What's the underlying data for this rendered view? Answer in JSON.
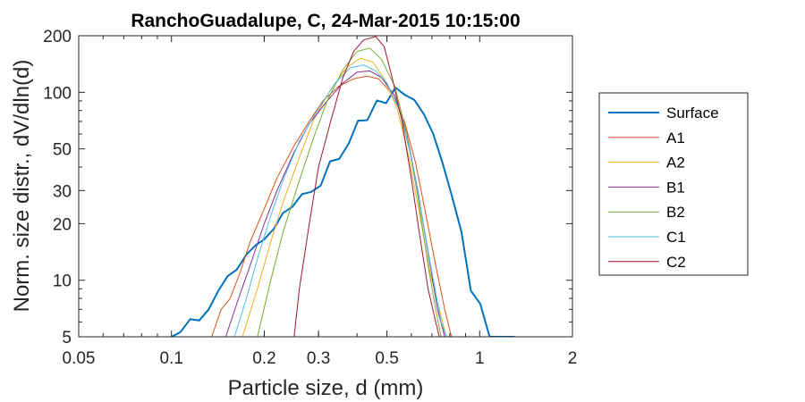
{
  "chart_data": {
    "type": "line",
    "title": "RanchoGuadalupe, C, 24-Mar-2015 10:15:00",
    "xlabel": "Particle size, d (mm)",
    "ylabel": "Norm. size distr., dV/dln(d)",
    "xscale": "log",
    "yscale": "log",
    "xlim": [
      0.05,
      2
    ],
    "ylim": [
      5,
      200
    ],
    "xticks": [
      0.05,
      0.1,
      0.2,
      0.3,
      0.5,
      1,
      2
    ],
    "xtick_labels": [
      "0.05",
      "0.1",
      "0.2",
      "0.3",
      "0.5",
      "1",
      "2"
    ],
    "yticks": [
      5,
      10,
      20,
      30,
      50,
      100,
      200
    ],
    "ytick_labels": [
      "5",
      "10",
      "20",
      "30",
      "50",
      "100",
      "200"
    ],
    "grid": false,
    "legend_position": "outside-right",
    "series": [
      {
        "name": "Surface",
        "color": "#0072BD",
        "width": 2,
        "x": [
          0.1,
          0.107,
          0.115,
          0.123,
          0.132,
          0.142,
          0.152,
          0.163,
          0.175,
          0.188,
          0.2,
          0.215,
          0.23,
          0.247,
          0.265,
          0.284,
          0.305,
          0.327,
          0.35,
          0.376,
          0.403,
          0.432,
          0.464,
          0.497,
          0.533,
          0.572,
          0.614,
          0.659,
          0.707,
          0.758,
          0.813,
          0.873,
          0.936,
          1.004,
          1.077,
          1.156,
          1.24,
          1.3
        ],
        "y": [
          5,
          5.3,
          6.2,
          6.1,
          7,
          8.8,
          10.5,
          11.4,
          13.7,
          15.4,
          16.5,
          18.8,
          22.8,
          24.6,
          28.7,
          29.5,
          31.9,
          42.9,
          44.2,
          53.4,
          70.6,
          71.1,
          90.5,
          87.5,
          106,
          96.8,
          91,
          76.5,
          60,
          42,
          28,
          18,
          8.8,
          7.5,
          5,
          5,
          5,
          5
        ]
      },
      {
        "name": "A1",
        "color": "#D95319",
        "width": 1,
        "x": [
          0.135,
          0.145,
          0.155,
          0.167,
          0.18,
          0.2,
          0.22,
          0.25,
          0.28,
          0.31,
          0.35,
          0.39,
          0.43,
          0.47,
          0.52,
          0.57,
          0.62,
          0.67,
          0.72,
          0.77,
          0.81
        ],
        "y": [
          5,
          7,
          8,
          11,
          16,
          24,
          35,
          52,
          70,
          90,
          108,
          118,
          122,
          118,
          98,
          70,
          42,
          22,
          12,
          7,
          5
        ]
      },
      {
        "name": "A2",
        "color": "#EDB120",
        "width": 1,
        "x": [
          0.17,
          0.19,
          0.21,
          0.23,
          0.26,
          0.29,
          0.33,
          0.37,
          0.41,
          0.45,
          0.49,
          0.54,
          0.59,
          0.64,
          0.69,
          0.74,
          0.78
        ],
        "y": [
          5,
          9,
          16,
          26,
          45,
          72,
          105,
          135,
          152,
          145,
          118,
          82,
          45,
          22,
          11,
          7,
          5
        ]
      },
      {
        "name": "B1",
        "color": "#7E2F8E",
        "width": 1,
        "x": [
          0.15,
          0.165,
          0.18,
          0.2,
          0.22,
          0.25,
          0.28,
          0.32,
          0.36,
          0.4,
          0.44,
          0.48,
          0.53,
          0.58,
          0.63,
          0.68,
          0.73,
          0.77
        ],
        "y": [
          5,
          8,
          12,
          20,
          30,
          48,
          68,
          90,
          112,
          128,
          130,
          120,
          96,
          60,
          30,
          14,
          7,
          5
        ]
      },
      {
        "name": "B2",
        "color": "#77AC30",
        "width": 1,
        "x": [
          0.19,
          0.21,
          0.23,
          0.26,
          0.29,
          0.32,
          0.36,
          0.4,
          0.44,
          0.48,
          0.53,
          0.58,
          0.63,
          0.68,
          0.72,
          0.75
        ],
        "y": [
          5,
          10,
          18,
          34,
          58,
          90,
          132,
          165,
          172,
          150,
          108,
          60,
          28,
          12,
          7,
          5
        ]
      },
      {
        "name": "C1",
        "color": "#4DBEEE",
        "width": 1,
        "x": [
          0.16,
          0.175,
          0.19,
          0.21,
          0.23,
          0.26,
          0.3,
          0.34,
          0.38,
          0.42,
          0.46,
          0.5,
          0.55,
          0.6,
          0.65,
          0.7,
          0.75,
          0.78
        ],
        "y": [
          5,
          8,
          13,
          22,
          34,
          55,
          82,
          112,
          135,
          140,
          130,
          112,
          80,
          45,
          22,
          11,
          6,
          5
        ]
      },
      {
        "name": "C2",
        "color": "#A2142F",
        "width": 1,
        "x": [
          0.25,
          0.26,
          0.28,
          0.3,
          0.33,
          0.36,
          0.39,
          0.42,
          0.46,
          0.49,
          0.52,
          0.56,
          0.6,
          0.64,
          0.68,
          0.72,
          0.74
        ],
        "y": [
          5,
          9,
          20,
          40,
          72,
          120,
          165,
          190,
          198,
          175,
          120,
          70,
          35,
          17,
          9,
          6,
          5
        ]
      }
    ]
  }
}
